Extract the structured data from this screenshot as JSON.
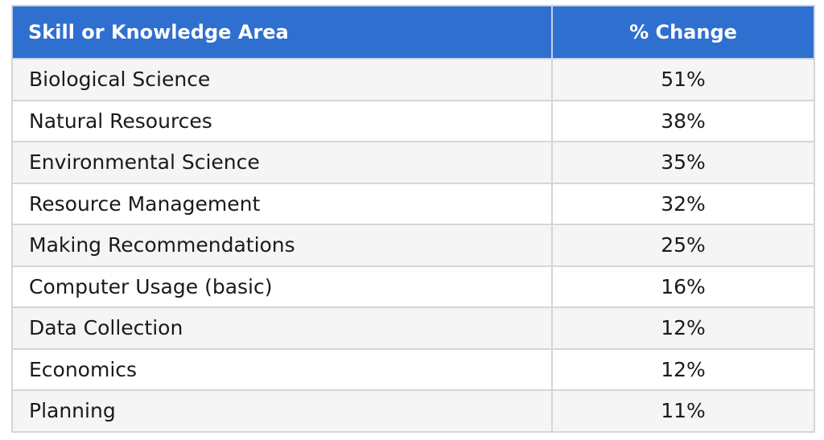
{
  "colors": {
    "header_bg": "#2f6fcf",
    "header_text": "#ffffff",
    "row_alt": "#f5f5f5",
    "row": "#ffffff",
    "border": "#d6d6d6"
  },
  "chart_data": {
    "type": "table",
    "columns": [
      "Skill or Knowledge Area",
      "% Change"
    ],
    "rows": [
      {
        "skill": "Biological Science",
        "change": "51%"
      },
      {
        "skill": "Natural Resources",
        "change": "38%"
      },
      {
        "skill": "Environmental Science",
        "change": "35%"
      },
      {
        "skill": "Resource Management",
        "change": "32%"
      },
      {
        "skill": "Making Recommendations",
        "change": "25%"
      },
      {
        "skill": "Computer Usage (basic)",
        "change": "16%"
      },
      {
        "skill": "Data Collection",
        "change": "12%"
      },
      {
        "skill": "Economics",
        "change": "12%"
      },
      {
        "skill": "Planning",
        "change": "11%"
      }
    ]
  }
}
